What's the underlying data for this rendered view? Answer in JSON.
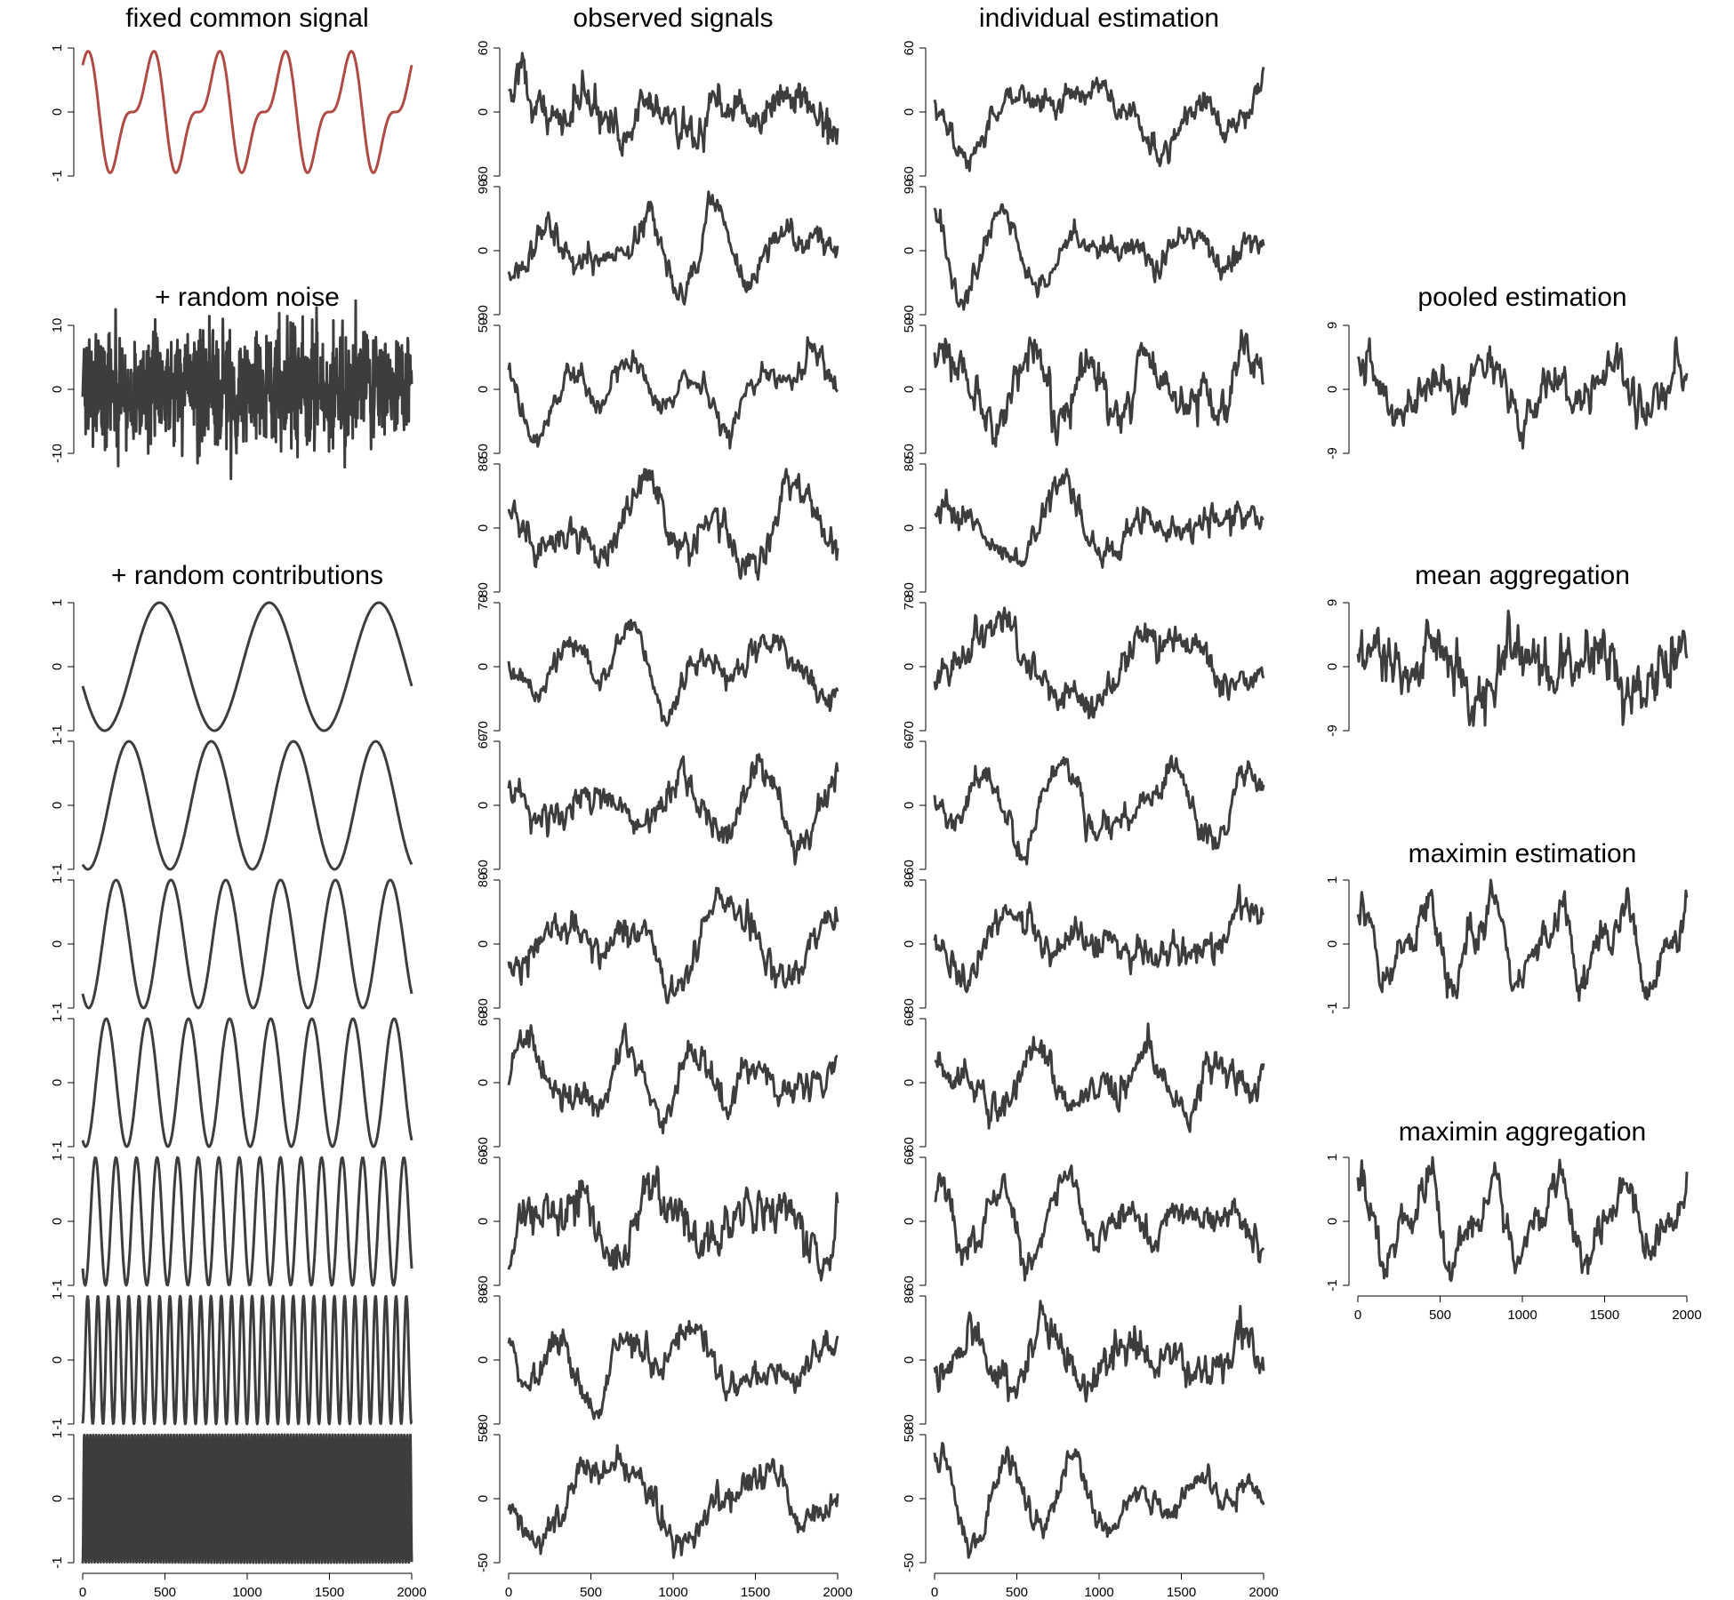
{
  "titles": {
    "fixed_common_signal": "fixed common signal",
    "random_noise": "+ random noise",
    "random_contributions": "+ random contributions",
    "observed_signals": "observed signals",
    "individual_estimation": "individual estimation",
    "pooled_estimation": "pooled estimation",
    "mean_aggregation": "mean aggregation",
    "maximin_estimation": "maximin estimation",
    "maximin_aggregation": "maximin aggregation"
  },
  "colors": {
    "common_signal": "#b04a44",
    "series": "#3d3d3d",
    "axis": "#000000"
  },
  "chart_data": [
    {
      "id": "fixed-common-signal",
      "type": "line",
      "title": "fixed common signal",
      "color": "#b04a44",
      "x_range": [
        0,
        2000
      ],
      "ylim": [
        -1,
        1
      ],
      "y_ticks": [
        "-1",
        "0",
        "1"
      ],
      "signal": "sum of two sinusoids, 5 dominant peaks per 2000 samples"
    },
    {
      "id": "random-noise",
      "type": "line",
      "title": "+ random noise",
      "x_range": [
        0,
        2000
      ],
      "ylim": [
        -10,
        10
      ],
      "y_ticks": [
        "-10",
        "0",
        "10"
      ],
      "signal": "white noise"
    },
    {
      "id": "random-contribution-1",
      "type": "line",
      "x_range": [
        0,
        2000
      ],
      "ylim": [
        -1,
        1
      ],
      "y_ticks": [
        "-1",
        "0",
        "1"
      ],
      "cycles": 3
    },
    {
      "id": "random-contribution-2",
      "type": "line",
      "x_range": [
        0,
        2000
      ],
      "ylim": [
        -1,
        1
      ],
      "y_ticks": [
        "-1",
        "0",
        "1"
      ],
      "cycles": 4
    },
    {
      "id": "random-contribution-3",
      "type": "line",
      "x_range": [
        0,
        2000
      ],
      "ylim": [
        -1,
        1
      ],
      "y_ticks": [
        "-1",
        "0",
        "1"
      ],
      "cycles": 6
    },
    {
      "id": "random-contribution-4",
      "type": "line",
      "x_range": [
        0,
        2000
      ],
      "ylim": [
        -1,
        1
      ],
      "y_ticks": [
        "-1",
        "0",
        "1"
      ],
      "cycles": 8
    },
    {
      "id": "random-contribution-5",
      "type": "line",
      "x_range": [
        0,
        2000
      ],
      "ylim": [
        -1,
        1
      ],
      "y_ticks": [
        "-1",
        "0",
        "1"
      ],
      "cycles": 16
    },
    {
      "id": "random-contribution-6",
      "type": "line",
      "x_range": [
        0,
        2000
      ],
      "ylim": [
        -1,
        1
      ],
      "y_ticks": [
        "-1",
        "0",
        "1"
      ],
      "cycles": 32
    },
    {
      "id": "random-contribution-7",
      "type": "line",
      "x_range": [
        0,
        2000
      ],
      "ylim": [
        -1,
        1
      ],
      "y_ticks": [
        "-1",
        "0",
        "1"
      ],
      "cycles": 110
    },
    {
      "id": "observed-signal-1",
      "type": "line",
      "x_range": [
        0,
        2000
      ],
      "ylim": [
        -60,
        60
      ],
      "y_ticks": [
        "-60",
        "0",
        "60"
      ]
    },
    {
      "id": "observed-signal-2",
      "type": "line",
      "x_range": [
        0,
        2000
      ],
      "ylim": [
        -90,
        90
      ],
      "y_ticks": [
        "-90",
        "0",
        "90"
      ]
    },
    {
      "id": "observed-signal-3",
      "type": "line",
      "x_range": [
        0,
        2000
      ],
      "ylim": [
        -50,
        50
      ],
      "y_ticks": [
        "-50",
        "0",
        "50"
      ]
    },
    {
      "id": "observed-signal-4",
      "type": "line",
      "x_range": [
        0,
        2000
      ],
      "ylim": [
        -80,
        80
      ],
      "y_ticks": [
        "-80",
        "0",
        "80"
      ]
    },
    {
      "id": "observed-signal-5",
      "type": "line",
      "x_range": [
        0,
        2000
      ],
      "ylim": [
        -70,
        70
      ],
      "y_ticks": [
        "-70",
        "0",
        "70"
      ]
    },
    {
      "id": "observed-signal-6",
      "type": "line",
      "x_range": [
        0,
        2000
      ],
      "ylim": [
        -60,
        60
      ],
      "y_ticks": [
        "-60",
        "0",
        "60"
      ]
    },
    {
      "id": "observed-signal-7",
      "type": "line",
      "x_range": [
        0,
        2000
      ],
      "ylim": [
        -80,
        80
      ],
      "y_ticks": [
        "-80",
        "0",
        "80"
      ]
    },
    {
      "id": "observed-signal-8",
      "type": "line",
      "x_range": [
        0,
        2000
      ],
      "ylim": [
        -60,
        60
      ],
      "y_ticks": [
        "-60",
        "0",
        "60"
      ]
    },
    {
      "id": "observed-signal-9",
      "type": "line",
      "x_range": [
        0,
        2000
      ],
      "ylim": [
        -60,
        60
      ],
      "y_ticks": [
        "-60",
        "0",
        "60"
      ]
    },
    {
      "id": "observed-signal-10",
      "type": "line",
      "x_range": [
        0,
        2000
      ],
      "ylim": [
        -80,
        80
      ],
      "y_ticks": [
        "-80",
        "0",
        "80"
      ]
    },
    {
      "id": "observed-signal-11",
      "type": "line",
      "x_range": [
        0,
        2000
      ],
      "ylim": [
        -50,
        50
      ],
      "y_ticks": [
        "-50",
        "0",
        "50"
      ]
    },
    {
      "id": "individual-estimation-1",
      "type": "line",
      "x_range": [
        0,
        2000
      ],
      "ylim": [
        -60,
        60
      ],
      "y_ticks": [
        "-60",
        "0",
        "60"
      ]
    },
    {
      "id": "individual-estimation-2",
      "type": "line",
      "x_range": [
        0,
        2000
      ],
      "ylim": [
        -90,
        90
      ],
      "y_ticks": [
        "-90",
        "0",
        "90"
      ]
    },
    {
      "id": "individual-estimation-3",
      "type": "line",
      "x_range": [
        0,
        2000
      ],
      "ylim": [
        -50,
        50
      ],
      "y_ticks": [
        "-50",
        "0",
        "50"
      ]
    },
    {
      "id": "individual-estimation-4",
      "type": "line",
      "x_range": [
        0,
        2000
      ],
      "ylim": [
        -80,
        80
      ],
      "y_ticks": [
        "-80",
        "0",
        "80"
      ]
    },
    {
      "id": "individual-estimation-5",
      "type": "line",
      "x_range": [
        0,
        2000
      ],
      "ylim": [
        -70,
        70
      ],
      "y_ticks": [
        "-70",
        "0",
        "70"
      ]
    },
    {
      "id": "individual-estimation-6",
      "type": "line",
      "x_range": [
        0,
        2000
      ],
      "ylim": [
        -60,
        60
      ],
      "y_ticks": [
        "-60",
        "0",
        "60"
      ]
    },
    {
      "id": "individual-estimation-7",
      "type": "line",
      "x_range": [
        0,
        2000
      ],
      "ylim": [
        -80,
        80
      ],
      "y_ticks": [
        "-80",
        "0",
        "80"
      ]
    },
    {
      "id": "individual-estimation-8",
      "type": "line",
      "x_range": [
        0,
        2000
      ],
      "ylim": [
        -60,
        60
      ],
      "y_ticks": [
        "-60",
        "0",
        "60"
      ]
    },
    {
      "id": "individual-estimation-9",
      "type": "line",
      "x_range": [
        0,
        2000
      ],
      "ylim": [
        -60,
        60
      ],
      "y_ticks": [
        "-60",
        "0",
        "60"
      ]
    },
    {
      "id": "individual-estimation-10",
      "type": "line",
      "x_range": [
        0,
        2000
      ],
      "ylim": [
        -80,
        80
      ],
      "y_ticks": [
        "-80",
        "0",
        "80"
      ]
    },
    {
      "id": "individual-estimation-11",
      "type": "line",
      "x_range": [
        0,
        2000
      ],
      "ylim": [
        -50,
        50
      ],
      "y_ticks": [
        "-50",
        "0",
        "50"
      ]
    },
    {
      "id": "pooled-estimation",
      "type": "line",
      "title": "pooled estimation",
      "x_range": [
        0,
        2000
      ],
      "ylim": [
        -9,
        9
      ],
      "y_ticks": [
        "-9",
        "0",
        "9"
      ]
    },
    {
      "id": "mean-aggregation",
      "type": "line",
      "title": "mean aggregation",
      "x_range": [
        0,
        2000
      ],
      "ylim": [
        -9,
        9
      ],
      "y_ticks": [
        "-9",
        "0",
        "9"
      ]
    },
    {
      "id": "maximin-estimation",
      "type": "line",
      "title": "maximin estimation",
      "x_range": [
        0,
        2000
      ],
      "ylim": [
        -1,
        1
      ],
      "y_ticks": [
        "-1",
        "0",
        "1"
      ]
    },
    {
      "id": "maximin-aggregation",
      "type": "line",
      "title": "maximin aggregation",
      "x_range": [
        0,
        2000
      ],
      "ylim": [
        -1,
        1
      ],
      "y_ticks": [
        "-1",
        "0",
        "1"
      ]
    }
  ],
  "x_axis": {
    "ticks": [
      "0",
      "500",
      "1000",
      "1500",
      "2000"
    ]
  }
}
